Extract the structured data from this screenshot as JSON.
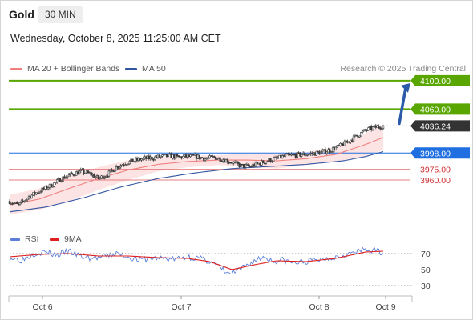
{
  "header": {
    "instrument": "Gold",
    "timeframe": "30 MIN"
  },
  "timestamp": "Wednesday, October 8, 2025 11:25:00 AM CET",
  "legend": {
    "ma20": {
      "label": "MA 20 + Bollinger Bands",
      "color": "#f08080"
    },
    "ma50": {
      "label": "MA 50",
      "color": "#3355a0"
    }
  },
  "credit": "Research © 2025 Trading Central",
  "rsi_legend": {
    "rsi": {
      "label": "RSI",
      "color": "#5b7fd6"
    },
    "ma9": {
      "label": "9MA",
      "color": "#e02020"
    }
  },
  "colors": {
    "target": "#5aa600",
    "pivot": "#1f6fe0",
    "support": "#e06060",
    "price": "#333333",
    "arrow": "#2a5aa8"
  },
  "chart_data": [
    {
      "type": "candlestick",
      "x_labels": [
        "Oct 6",
        "Oct 7",
        "Oct 8",
        "Oct 9"
      ],
      "ylim": [
        3890,
        4110
      ],
      "levels": [
        {
          "value": 4100.0,
          "label": "4100.00",
          "kind": "target"
        },
        {
          "value": 4060.0,
          "label": "4060.00",
          "kind": "target"
        },
        {
          "value": 4036.24,
          "label": "4036.24",
          "kind": "last-price"
        },
        {
          "value": 3998.0,
          "label": "3998.00",
          "kind": "pivot"
        },
        {
          "value": 3975.0,
          "label": "3975.00",
          "kind": "support"
        },
        {
          "value": 3960.0,
          "label": "3960.00",
          "kind": "support"
        }
      ],
      "price_anchors": [
        [
          0,
          3930
        ],
        [
          6,
          3924
        ],
        [
          12,
          3935
        ],
        [
          18,
          3942
        ],
        [
          24,
          3948
        ],
        [
          30,
          3955
        ],
        [
          36,
          3963
        ],
        [
          42,
          3968
        ],
        [
          48,
          3972
        ],
        [
          54,
          3969
        ],
        [
          60,
          3962
        ],
        [
          66,
          3968
        ],
        [
          72,
          3978
        ],
        [
          78,
          3984
        ],
        [
          84,
          3987
        ],
        [
          90,
          3990
        ],
        [
          96,
          3991
        ],
        [
          102,
          3993
        ],
        [
          108,
          3994
        ],
        [
          114,
          3992
        ],
        [
          120,
          3993
        ],
        [
          126,
          3993
        ],
        [
          132,
          3990
        ],
        [
          138,
          3992
        ],
        [
          144,
          3989
        ],
        [
          150,
          3985
        ],
        [
          156,
          3980
        ],
        [
          162,
          3979
        ],
        [
          168,
          3983
        ],
        [
          174,
          3987
        ],
        [
          180,
          3990
        ],
        [
          186,
          3994
        ],
        [
          192,
          3995
        ],
        [
          198,
          3996
        ],
        [
          204,
          3997
        ],
        [
          210,
          3999
        ],
        [
          216,
          4002
        ],
        [
          222,
          4007
        ],
        [
          228,
          4014
        ],
        [
          234,
          4022
        ],
        [
          240,
          4030
        ],
        [
          246,
          4034
        ],
        [
          252,
          4036.24
        ]
      ],
      "ma20_anchors": [
        [
          0,
          3925
        ],
        [
          20,
          3933
        ],
        [
          40,
          3948
        ],
        [
          60,
          3962
        ],
        [
          80,
          3974
        ],
        [
          100,
          3982
        ],
        [
          120,
          3986
        ],
        [
          140,
          3988
        ],
        [
          160,
          3988
        ],
        [
          180,
          3987
        ],
        [
          200,
          3990
        ],
        [
          220,
          3996
        ],
        [
          240,
          4010
        ],
        [
          252,
          4020
        ]
      ],
      "ma50_anchors": [
        [
          0,
          3915
        ],
        [
          25,
          3922
        ],
        [
          50,
          3935
        ],
        [
          75,
          3950
        ],
        [
          100,
          3962
        ],
        [
          125,
          3970
        ],
        [
          150,
          3976
        ],
        [
          175,
          3979
        ],
        [
          200,
          3982
        ],
        [
          225,
          3987
        ],
        [
          240,
          3993
        ],
        [
          252,
          4000
        ]
      ],
      "band_width_anchors": [
        [
          0,
          14
        ],
        [
          20,
          15
        ],
        [
          40,
          18
        ],
        [
          60,
          16
        ],
        [
          80,
          14
        ],
        [
          100,
          10
        ],
        [
          120,
          8
        ],
        [
          140,
          7
        ],
        [
          160,
          9
        ],
        [
          180,
          11
        ],
        [
          200,
          9
        ],
        [
          220,
          10
        ],
        [
          240,
          16
        ],
        [
          252,
          18
        ]
      ]
    },
    {
      "type": "line",
      "title": "RSI",
      "ylim": [
        20,
        80
      ],
      "y_ticks": [
        70,
        50,
        30
      ],
      "reference_lines": [
        70,
        30
      ],
      "rsi_anchors": [
        [
          0,
          65
        ],
        [
          8,
          62
        ],
        [
          16,
          70
        ],
        [
          24,
          72
        ],
        [
          32,
          68
        ],
        [
          40,
          73
        ],
        [
          48,
          66
        ],
        [
          56,
          64
        ],
        [
          64,
          66
        ],
        [
          72,
          70
        ],
        [
          80,
          66
        ],
        [
          88,
          62
        ],
        [
          96,
          64
        ],
        [
          104,
          64
        ],
        [
          112,
          63
        ],
        [
          120,
          66
        ],
        [
          128,
          64
        ],
        [
          136,
          60
        ],
        [
          142,
          52
        ],
        [
          148,
          44
        ],
        [
          154,
          48
        ],
        [
          160,
          55
        ],
        [
          166,
          62
        ],
        [
          172,
          66
        ],
        [
          178,
          60
        ],
        [
          184,
          62
        ],
        [
          192,
          58
        ],
        [
          200,
          60
        ],
        [
          210,
          63
        ],
        [
          220,
          66
        ],
        [
          230,
          70
        ],
        [
          240,
          75
        ],
        [
          248,
          73
        ],
        [
          252,
          72
        ]
      ],
      "ma9_anchors": [
        [
          0,
          66
        ],
        [
          20,
          69
        ],
        [
          40,
          70
        ],
        [
          60,
          67
        ],
        [
          80,
          67
        ],
        [
          100,
          65
        ],
        [
          120,
          64
        ],
        [
          135,
          60
        ],
        [
          150,
          50
        ],
        [
          165,
          56
        ],
        [
          180,
          61
        ],
        [
          200,
          60
        ],
        [
          220,
          64
        ],
        [
          240,
          72
        ],
        [
          252,
          73
        ]
      ]
    }
  ]
}
